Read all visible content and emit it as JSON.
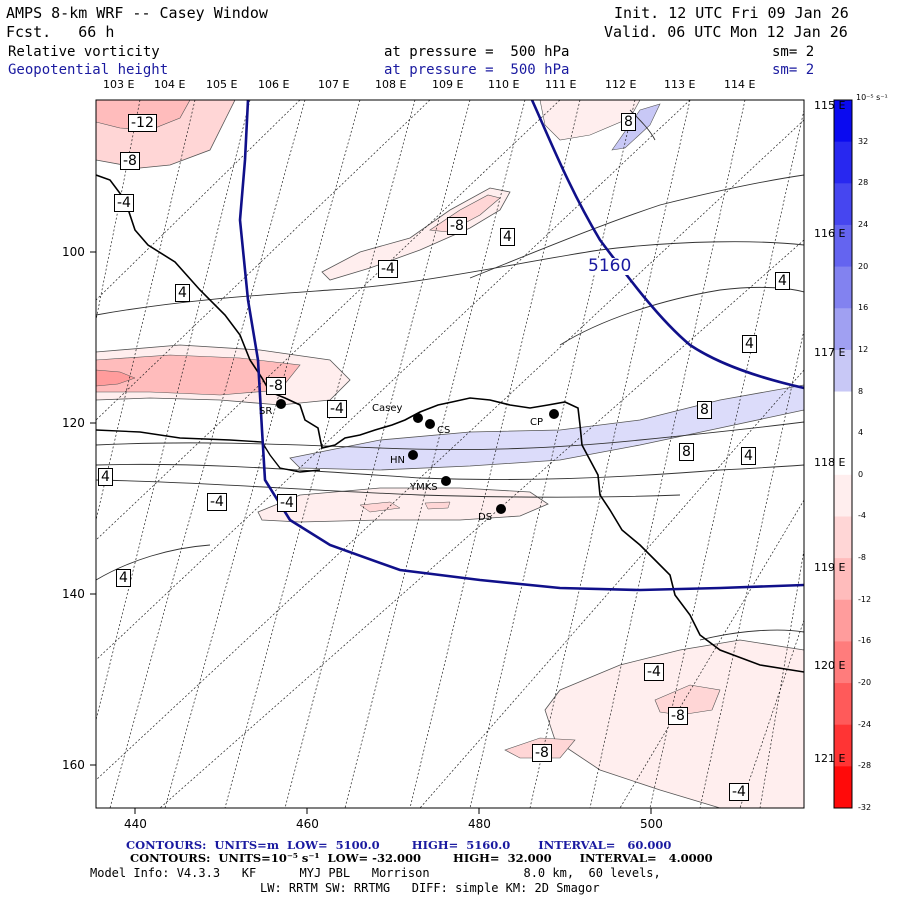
{
  "header": {
    "title": "AMPS 8-km WRF -- Casey Window",
    "forecast": "Fcst.   66 h",
    "init": "Init. 12 UTC Fri 09 Jan 26",
    "valid": "Valid. 06 UTC Mon 12 Jan 26",
    "field1": {
      "name": "Relative vorticity",
      "pressure": "at pressure =  500 hPa",
      "sm": "sm= 2"
    },
    "field2": {
      "name": "Geopotential height",
      "pressure": "at pressure =  500 hPa",
      "sm": "sm= 2"
    }
  },
  "axes": {
    "top_lon": [
      "103 E",
      "104 E",
      "105 E",
      "106 E",
      "107 E",
      "108 E",
      "109 E",
      "110 E",
      "111 E",
      "112 E",
      "113 E",
      "114 E"
    ],
    "right_lat": [
      "115 E",
      "116 E",
      "117 E",
      "118 E",
      "119 E",
      "120 E",
      "121 E"
    ],
    "x_ticks": [
      "440",
      "460",
      "480",
      "500"
    ],
    "y_ticks": [
      "100",
      "120",
      "140",
      "160"
    ]
  },
  "colorbar": {
    "unit": "10⁻⁵ s⁻¹",
    "labels": [
      "32",
      "28",
      "24",
      "20",
      "16",
      "12",
      "8",
      "4",
      "0",
      "-4",
      "-8",
      "-12",
      "-16",
      "-20",
      "-24",
      "-28",
      "-32"
    ],
    "colors": [
      "#0a0af0",
      "#2828f0",
      "#4646f0",
      "#6464f0",
      "#8282f0",
      "#a0a0f2",
      "#c8c8f6",
      "#ffffff",
      "#ffffff",
      "#ffeeee",
      "#ffd6d6",
      "#ffbcbc",
      "#ff9c9c",
      "#ff7c7c",
      "#ff5a5a",
      "#ff3434",
      "#ff0a0a"
    ]
  },
  "map_labels": {
    "height_contour": "5160",
    "contour_values": [
      "-12",
      "-8",
      "-4",
      "-8",
      "4",
      "-4",
      "4",
      "8",
      "4",
      "4",
      "-8",
      "-4",
      "8",
      "8",
      "4",
      "4",
      "-4",
      "-4",
      "4",
      "-4",
      "-8",
      "-8",
      "-4"
    ],
    "stations": [
      {
        "name": "Casey"
      },
      {
        "name": "CS"
      },
      {
        "name": "CP"
      },
      {
        "name": "HN"
      },
      {
        "name": "YMKS"
      },
      {
        "name": "DS"
      },
      {
        "name": "SR"
      }
    ]
  },
  "footer": {
    "line1": "CONTOURS:  UNITS=m  LOW=  5100.0        HIGH=  5160.0       INTERVAL=   60.000",
    "line2": "CONTOURS:  UNITS=10⁻⁵ s⁻¹  LOW= -32.000        HIGH=  32.000       INTERVAL=   4.0000",
    "line3": "Model Info: V4.3.3   KF      MYJ PBL   Morrison             8.0 km,  60 levels,",
    "line4": "LW: RRTM SW: RRTMG   DIFF: simple KM: 2D Smagor"
  }
}
